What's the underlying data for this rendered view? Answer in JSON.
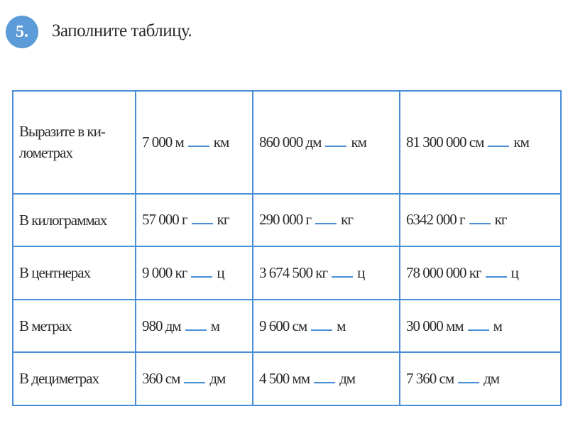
{
  "exercise": {
    "number": "5.",
    "title": "Заполните таблицу."
  },
  "colors": {
    "accent": "#5b9bd8",
    "border": "#4a8fd6"
  },
  "rows": [
    {
      "label": "Выразите в ки-ломeтрах",
      "cells": [
        {
          "value": "7 000 м",
          "unit": "км"
        },
        {
          "value": "860 000 дм",
          "unit": "км"
        },
        {
          "value": "81 300 000 см",
          "unit": "км"
        }
      ]
    },
    {
      "label": "В килограммах",
      "cells": [
        {
          "value": "57 000 г",
          "unit": "кг"
        },
        {
          "value": "290 000 г",
          "unit": "кг"
        },
        {
          "value": "6342 000 г",
          "unit": "кг"
        }
      ]
    },
    {
      "label": "В центнерах",
      "cells": [
        {
          "value": "9 000 кг",
          "unit": "ц"
        },
        {
          "value": "3 674 500 кг",
          "unit": "ц"
        },
        {
          "value": "78 000 000 кг",
          "unit": "ц"
        }
      ]
    },
    {
      "label": "В метрах",
      "cells": [
        {
          "value": "980 дм",
          "unit": "м"
        },
        {
          "value": "9 600 см",
          "unit": "м"
        },
        {
          "value": "30 000 мм",
          "unit": "м"
        }
      ]
    },
    {
      "label": "В дециметрах",
      "cells": [
        {
          "value": "360 см",
          "unit": "дм"
        },
        {
          "value": "4 500 мм",
          "unit": "дм"
        },
        {
          "value": "7 360 см",
          "unit": "дм"
        }
      ]
    }
  ]
}
